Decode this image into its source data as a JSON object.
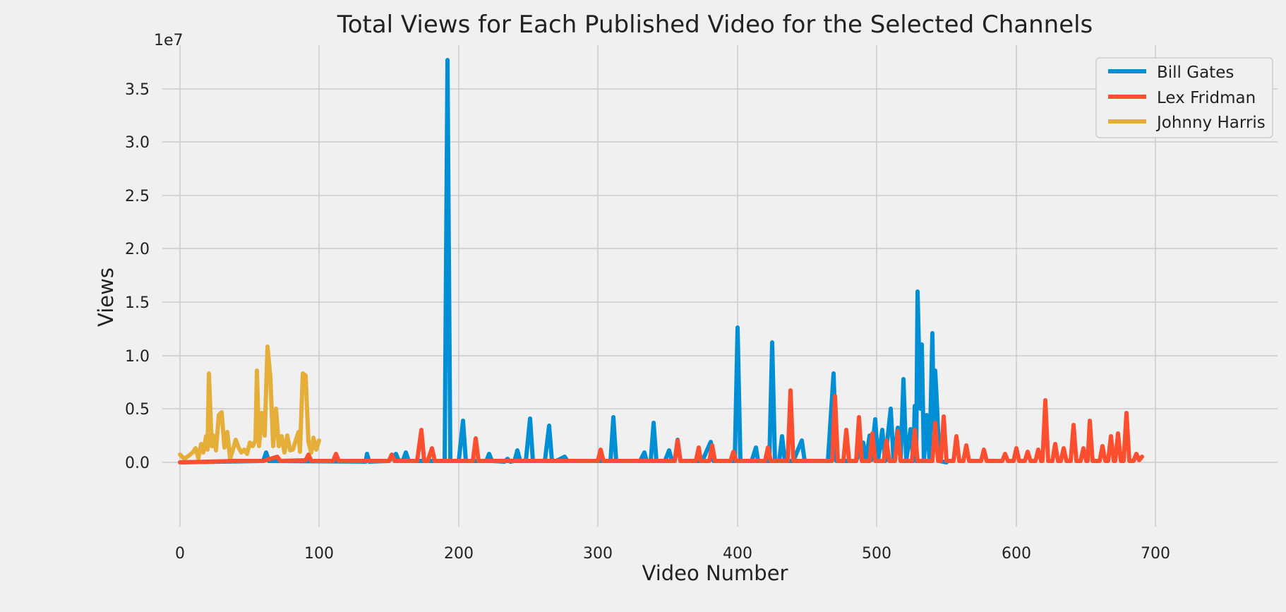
{
  "chart_data": {
    "type": "line",
    "title": "Total Views for Each Published Video for the Selected Channels",
    "xlabel": "Video Number",
    "ylabel": "Views",
    "y_scale_label": "1e7",
    "xlim": [
      -25,
      725
    ],
    "ylim": [
      -1000000,
      38500000
    ],
    "x_ticks": [
      0,
      100,
      200,
      300,
      400,
      500,
      600,
      700
    ],
    "x_tick_labels": [
      "0",
      "100",
      "200",
      "300",
      "400",
      "500",
      "600",
      "700"
    ],
    "y_ticks": [
      0,
      5000000,
      10000000,
      15000000,
      20000000,
      25000000,
      30000000,
      35000000
    ],
    "y_tick_labels": [
      "0.0",
      "0.5",
      "1.0",
      "1.5",
      "2.0",
      "2.5",
      "3.0",
      "3.5"
    ],
    "grid": true,
    "legend_position": "top-right",
    "series": [
      {
        "name": "Bill Gates",
        "color": "#008fd5",
        "points": [
          [
            0,
            0
          ],
          [
            60,
            100000
          ],
          [
            62,
            900000
          ],
          [
            64,
            100000
          ],
          [
            133,
            50000
          ],
          [
            134,
            800000
          ],
          [
            136,
            50000
          ],
          [
            150,
            100000
          ],
          [
            155,
            800000
          ],
          [
            157,
            100000
          ],
          [
            160,
            200000
          ],
          [
            162,
            900000
          ],
          [
            164,
            100000
          ],
          [
            190,
            100000
          ],
          [
            192,
            37700000
          ],
          [
            194,
            100000
          ],
          [
            200,
            100000
          ],
          [
            203,
            3900000
          ],
          [
            205,
            100000
          ],
          [
            220,
            100000
          ],
          [
            222,
            800000
          ],
          [
            224,
            100000
          ],
          [
            233,
            50000
          ],
          [
            235,
            300000
          ],
          [
            237,
            50000
          ],
          [
            240,
            100000
          ],
          [
            242,
            1100000
          ],
          [
            244,
            100000
          ],
          [
            248,
            100000
          ],
          [
            251,
            4100000
          ],
          [
            253,
            100000
          ],
          [
            262,
            100000
          ],
          [
            265,
            3400000
          ],
          [
            267,
            100000
          ],
          [
            270,
            100000
          ],
          [
            276,
            500000
          ],
          [
            278,
            100000
          ],
          [
            300,
            100000
          ],
          [
            309,
            100000
          ],
          [
            311,
            4200000
          ],
          [
            313,
            100000
          ],
          [
            330,
            100000
          ],
          [
            333,
            900000
          ],
          [
            335,
            100000
          ],
          [
            338,
            100000
          ],
          [
            340,
            3700000
          ],
          [
            342,
            100000
          ],
          [
            348,
            100000
          ],
          [
            351,
            1100000
          ],
          [
            353,
            100000
          ],
          [
            355,
            100000
          ],
          [
            357,
            2100000
          ],
          [
            359,
            100000
          ],
          [
            375,
            100000
          ],
          [
            381,
            1900000
          ],
          [
            383,
            100000
          ],
          [
            398,
            100000
          ],
          [
            400,
            12600000
          ],
          [
            402,
            100000
          ],
          [
            410,
            100000
          ],
          [
            413,
            1400000
          ],
          [
            415,
            100000
          ],
          [
            423,
            100000
          ],
          [
            425,
            11200000
          ],
          [
            427,
            100000
          ],
          [
            430,
            100000
          ],
          [
            432,
            2400000
          ],
          [
            434,
            100000
          ],
          [
            440,
            100000
          ],
          [
            446,
            2000000
          ],
          [
            448,
            100000
          ],
          [
            465,
            100000
          ],
          [
            469,
            8300000
          ],
          [
            471,
            100000
          ],
          [
            485,
            100000
          ],
          [
            490,
            1800000
          ],
          [
            492,
            100000
          ],
          [
            495,
            2500000
          ],
          [
            496,
            200000
          ],
          [
            499,
            4000000
          ],
          [
            501,
            100000
          ],
          [
            504,
            3000000
          ],
          [
            506,
            100000
          ],
          [
            510,
            5000000
          ],
          [
            512,
            100000
          ],
          [
            515,
            3200000
          ],
          [
            517,
            100000
          ],
          [
            519,
            7800000
          ],
          [
            521,
            100000
          ],
          [
            524,
            3100000
          ],
          [
            526,
            100000
          ],
          [
            527,
            5300000
          ],
          [
            528,
            100000
          ],
          [
            529,
            16000000
          ],
          [
            531,
            5000000
          ],
          [
            532,
            11000000
          ],
          [
            534,
            100000
          ],
          [
            536,
            4400000
          ],
          [
            538,
            100000
          ],
          [
            540,
            12100000
          ],
          [
            541,
            3000000
          ],
          [
            542,
            8600000
          ],
          [
            543,
            6000000
          ],
          [
            545,
            100000
          ],
          [
            550,
            0
          ]
        ]
      },
      {
        "name": "Lex Fridman",
        "color": "#fc4f30",
        "points": [
          [
            0,
            0
          ],
          [
            20,
            50000
          ],
          [
            40,
            80000
          ],
          [
            60,
            100000
          ],
          [
            70,
            500000
          ],
          [
            72,
            100000
          ],
          [
            90,
            150000
          ],
          [
            92,
            700000
          ],
          [
            94,
            100000
          ],
          [
            110,
            100000
          ],
          [
            112,
            800000
          ],
          [
            114,
            100000
          ],
          [
            130,
            100000
          ],
          [
            150,
            100000
          ],
          [
            152,
            700000
          ],
          [
            154,
            100000
          ],
          [
            170,
            100000
          ],
          [
            173,
            3000000
          ],
          [
            175,
            100000
          ],
          [
            178,
            100000
          ],
          [
            181,
            1300000
          ],
          [
            183,
            100000
          ],
          [
            210,
            100000
          ],
          [
            212,
            2200000
          ],
          [
            214,
            100000
          ],
          [
            250,
            100000
          ],
          [
            290,
            100000
          ],
          [
            300,
            100000
          ],
          [
            302,
            1200000
          ],
          [
            304,
            100000
          ],
          [
            330,
            100000
          ],
          [
            355,
            100000
          ],
          [
            357,
            2000000
          ],
          [
            359,
            100000
          ],
          [
            370,
            100000
          ],
          [
            372,
            1400000
          ],
          [
            374,
            100000
          ],
          [
            380,
            100000
          ],
          [
            382,
            1600000
          ],
          [
            384,
            100000
          ],
          [
            395,
            100000
          ],
          [
            397,
            1000000
          ],
          [
            399,
            100000
          ],
          [
            420,
            100000
          ],
          [
            422,
            1400000
          ],
          [
            424,
            100000
          ],
          [
            436,
            100000
          ],
          [
            438,
            6700000
          ],
          [
            440,
            100000
          ],
          [
            460,
            100000
          ],
          [
            468,
            100000
          ],
          [
            470,
            6200000
          ],
          [
            472,
            100000
          ],
          [
            476,
            100000
          ],
          [
            478,
            3000000
          ],
          [
            480,
            100000
          ],
          [
            485,
            100000
          ],
          [
            487,
            4200000
          ],
          [
            489,
            100000
          ],
          [
            495,
            100000
          ],
          [
            497,
            2700000
          ],
          [
            499,
            100000
          ],
          [
            505,
            100000
          ],
          [
            507,
            2000000
          ],
          [
            509,
            100000
          ],
          [
            513,
            100000
          ],
          [
            515,
            2900000
          ],
          [
            517,
            100000
          ],
          [
            525,
            100000
          ],
          [
            527,
            3000000
          ],
          [
            529,
            100000
          ],
          [
            540,
            100000
          ],
          [
            542,
            3700000
          ],
          [
            544,
            100000
          ],
          [
            546,
            100000
          ],
          [
            548,
            4300000
          ],
          [
            550,
            100000
          ],
          [
            555,
            100000
          ],
          [
            557,
            2400000
          ],
          [
            559,
            100000
          ],
          [
            562,
            100000
          ],
          [
            564,
            1600000
          ],
          [
            566,
            100000
          ],
          [
            575,
            100000
          ],
          [
            577,
            1200000
          ],
          [
            579,
            100000
          ],
          [
            590,
            100000
          ],
          [
            592,
            800000
          ],
          [
            594,
            100000
          ],
          [
            598,
            100000
          ],
          [
            600,
            1300000
          ],
          [
            602,
            100000
          ],
          [
            606,
            100000
          ],
          [
            608,
            1000000
          ],
          [
            610,
            100000
          ],
          [
            614,
            100000
          ],
          [
            616,
            1200000
          ],
          [
            618,
            100000
          ],
          [
            619,
            100000
          ],
          [
            621,
            5800000
          ],
          [
            623,
            100000
          ],
          [
            626,
            100000
          ],
          [
            628,
            1700000
          ],
          [
            630,
            100000
          ],
          [
            632,
            100000
          ],
          [
            634,
            1300000
          ],
          [
            636,
            100000
          ],
          [
            639,
            100000
          ],
          [
            641,
            3500000
          ],
          [
            643,
            100000
          ],
          [
            646,
            100000
          ],
          [
            648,
            1300000
          ],
          [
            650,
            100000
          ],
          [
            651,
            100000
          ],
          [
            653,
            3900000
          ],
          [
            655,
            100000
          ],
          [
            660,
            100000
          ],
          [
            662,
            1500000
          ],
          [
            664,
            100000
          ],
          [
            666,
            100000
          ],
          [
            668,
            2400000
          ],
          [
            670,
            100000
          ],
          [
            671,
            100000
          ],
          [
            673,
            2700000
          ],
          [
            675,
            100000
          ],
          [
            677,
            100000
          ],
          [
            679,
            4600000
          ],
          [
            681,
            100000
          ],
          [
            684,
            100000
          ],
          [
            686,
            800000
          ],
          [
            688,
            200000
          ],
          [
            690,
            500000
          ]
        ]
      },
      {
        "name": "Johnny Harris",
        "color": "#e5ae38",
        "points": [
          [
            0,
            700000
          ],
          [
            3,
            300000
          ],
          [
            6,
            600000
          ],
          [
            9,
            900000
          ],
          [
            11,
            1300000
          ],
          [
            13,
            400000
          ],
          [
            15,
            1700000
          ],
          [
            17,
            900000
          ],
          [
            19,
            2400000
          ],
          [
            20,
            1200000
          ],
          [
            21,
            8300000
          ],
          [
            23,
            1500000
          ],
          [
            24,
            2500000
          ],
          [
            26,
            1100000
          ],
          [
            28,
            4400000
          ],
          [
            30,
            4700000
          ],
          [
            32,
            1400000
          ],
          [
            34,
            2800000
          ],
          [
            36,
            300000
          ],
          [
            38,
            1200000
          ],
          [
            40,
            2100000
          ],
          [
            42,
            1400000
          ],
          [
            44,
            900000
          ],
          [
            46,
            1200000
          ],
          [
            48,
            800000
          ],
          [
            50,
            1800000
          ],
          [
            52,
            1500000
          ],
          [
            54,
            2000000
          ],
          [
            55,
            8600000
          ],
          [
            57,
            1500000
          ],
          [
            59,
            4600000
          ],
          [
            61,
            2500000
          ],
          [
            63,
            10800000
          ],
          [
            65,
            8000000
          ],
          [
            67,
            1500000
          ],
          [
            69,
            5000000
          ],
          [
            71,
            1500000
          ],
          [
            73,
            2400000
          ],
          [
            75,
            900000
          ],
          [
            77,
            2500000
          ],
          [
            79,
            1100000
          ],
          [
            81,
            1200000
          ],
          [
            83,
            2000000
          ],
          [
            85,
            2800000
          ],
          [
            86,
            1000000
          ],
          [
            88,
            8300000
          ],
          [
            90,
            8100000
          ],
          [
            92,
            1900000
          ],
          [
            94,
            900000
          ],
          [
            96,
            2300000
          ],
          [
            98,
            1200000
          ],
          [
            100,
            2000000
          ]
        ]
      }
    ]
  }
}
